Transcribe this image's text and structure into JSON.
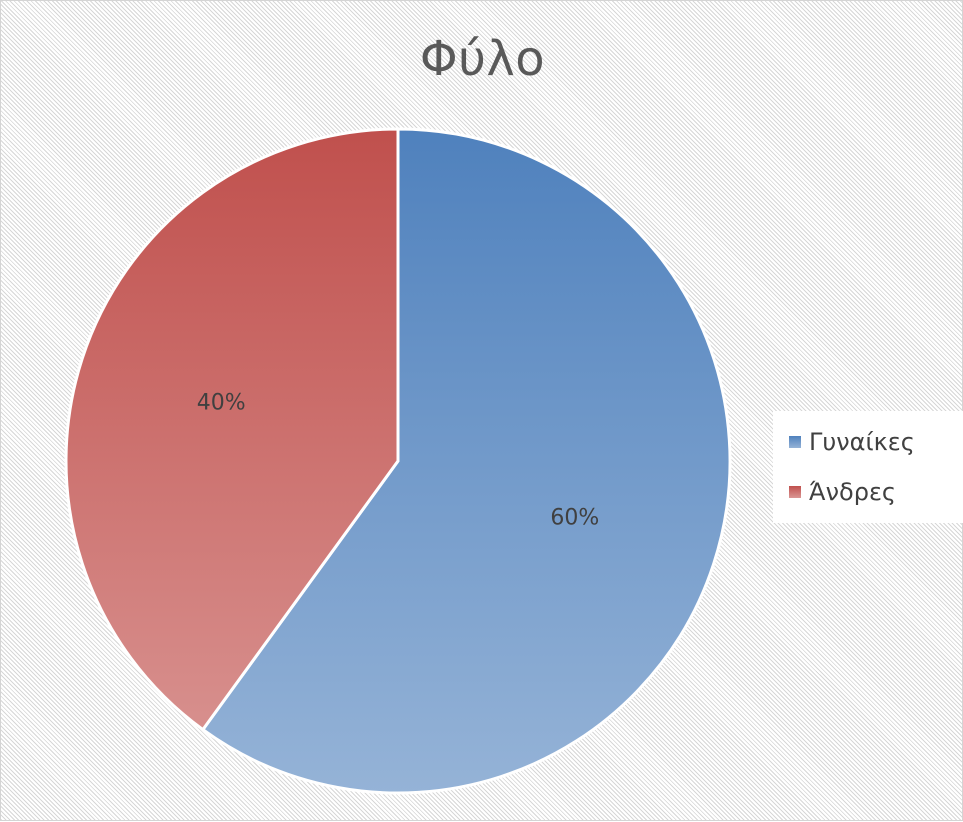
{
  "chart_data": {
    "type": "pie",
    "title": "Φύλο",
    "categories": [
      "Γυναίκες",
      "Άνδρες"
    ],
    "values": [
      60,
      40
    ],
    "data_labels": [
      "60%",
      "40%"
    ],
    "colors": [
      "#4f81bd",
      "#c0504d"
    ],
    "colors_light": [
      "#95b3d7",
      "#da9694"
    ],
    "legend_position": "right"
  }
}
